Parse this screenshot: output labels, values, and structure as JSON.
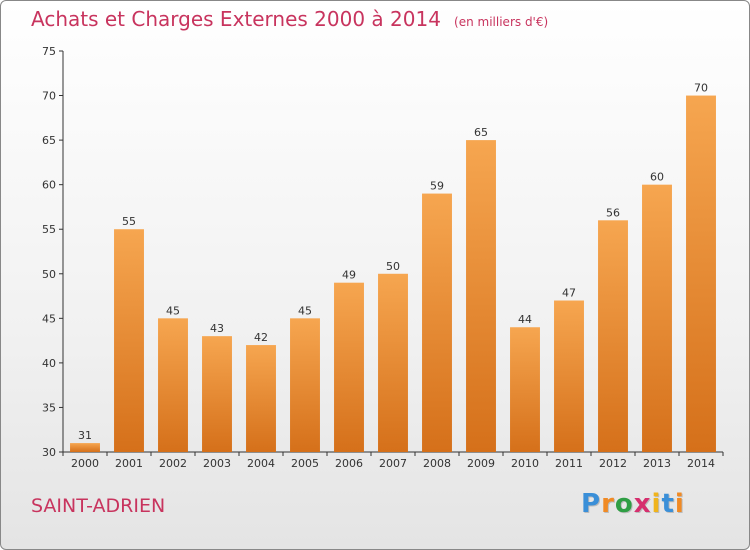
{
  "header": {
    "title": "Achats et Charges Externes 2000 à 2014",
    "subtitle": "(en milliers d'€)"
  },
  "footer": {
    "commune": "SAINT-ADRIEN",
    "brand_letters": [
      "P",
      "r",
      "o",
      "x",
      "i",
      "t",
      "i"
    ],
    "brand_colors": [
      "#3a8fd8",
      "#f08a24",
      "#2f9e44",
      "#d62f6e",
      "#f0b41c",
      "#3a8fd8",
      "#f08a24"
    ]
  },
  "colors": {
    "bar_light": "#f6a650",
    "bar_dark": "#d5701a",
    "title": "#c8345e"
  },
  "chart_data": {
    "type": "bar",
    "categories": [
      "2000",
      "2001",
      "2002",
      "2003",
      "2004",
      "2005",
      "2006",
      "2007",
      "2008",
      "2009",
      "2010",
      "2011",
      "2012",
      "2013",
      "2014"
    ],
    "values": [
      31,
      55,
      45,
      43,
      42,
      45,
      49,
      50,
      59,
      65,
      44,
      47,
      56,
      60,
      70
    ],
    "title": "Achats et Charges Externes 2000 à 2014",
    "subtitle": "(en milliers d'€)",
    "xlabel": "",
    "ylabel": "",
    "ylim": [
      30,
      75
    ],
    "yticks": [
      30,
      35,
      40,
      45,
      50,
      55,
      60,
      65,
      70,
      75
    ],
    "grid": false,
    "legend": "none"
  }
}
